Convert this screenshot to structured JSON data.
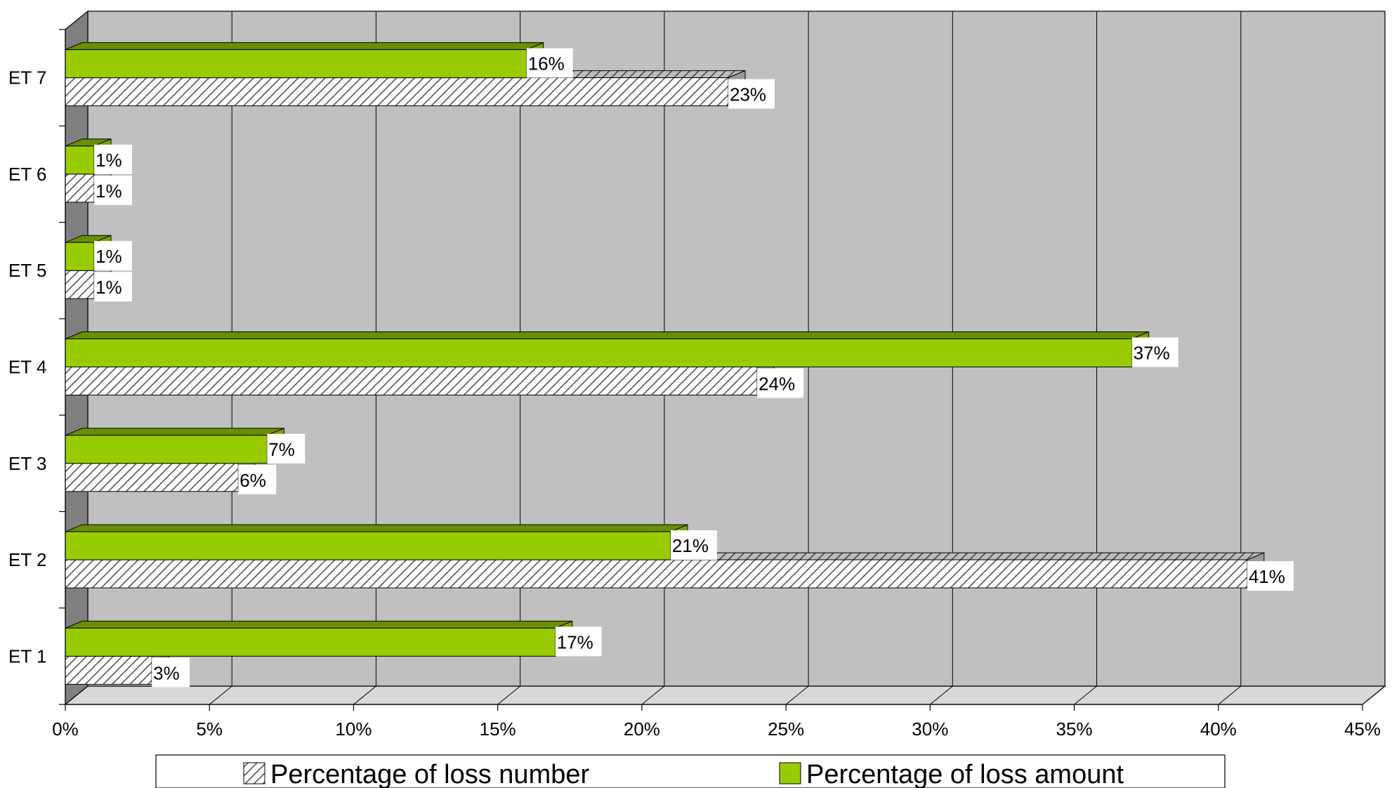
{
  "chart_data": {
    "type": "bar",
    "orientation": "horizontal",
    "style": "3d-clustered",
    "categories": [
      "ET 1",
      "ET 2",
      "ET 3",
      "ET 4",
      "ET 5",
      "ET 6",
      "ET 7"
    ],
    "series": [
      {
        "name": "Percentage of loss number",
        "values": [
          3,
          41,
          6,
          24,
          1,
          1,
          23
        ],
        "labels": [
          "3%",
          "41%",
          "6%",
          "24%",
          "1%",
          "1%",
          "23%"
        ],
        "color": "#ffffff",
        "pattern": "diagonal-hatch"
      },
      {
        "name": "Percentage of loss amount",
        "values": [
          17,
          21,
          7,
          37,
          1,
          1,
          16
        ],
        "labels": [
          "17%",
          "21%",
          "7%",
          "37%",
          "1%",
          "1%",
          "16%"
        ],
        "color": "#99cc00",
        "pattern": "solid"
      }
    ],
    "xlim": [
      0,
      45
    ],
    "x_ticks": [
      "0%",
      "5%",
      "10%",
      "15%",
      "20%",
      "25%",
      "30%",
      "35%",
      "40%",
      "45%"
    ],
    "title": "",
    "xlabel": "",
    "ylabel": "",
    "grid": true,
    "legend_position": "bottom",
    "colors": {
      "plot_back": "#c0c0c0",
      "side_wall": "#808080",
      "floor": "#d9d9d9",
      "green_top": "#6b8e00",
      "hatch_top": "#b0b0b0"
    }
  }
}
